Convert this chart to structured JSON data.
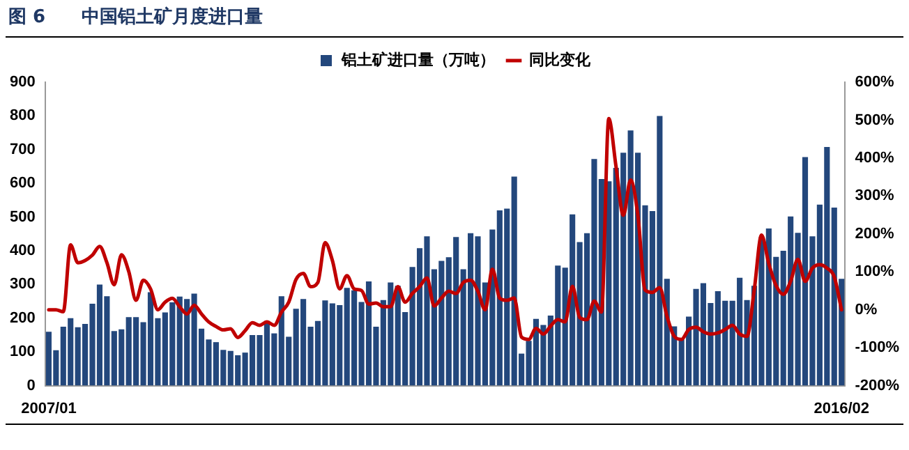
{
  "chart_data": {
    "type": "bar",
    "title": "图 6　　中国铝土矿月度进口量",
    "categories": [
      "2007/01",
      null,
      null,
      null,
      null,
      null,
      null,
      null,
      null,
      null,
      null,
      null,
      null,
      null,
      null,
      null,
      null,
      null,
      null,
      null,
      null,
      null,
      null,
      null,
      null,
      null,
      null,
      null,
      null,
      null,
      null,
      null,
      null,
      null,
      null,
      null,
      null,
      null,
      null,
      null,
      null,
      null,
      null,
      null,
      null,
      null,
      null,
      null,
      null,
      null,
      null,
      null,
      null,
      null,
      null,
      null,
      null,
      null,
      null,
      null,
      null,
      null,
      null,
      null,
      null,
      null,
      null,
      null,
      null,
      null,
      null,
      null,
      null,
      null,
      null,
      null,
      null,
      null,
      null,
      null,
      null,
      null,
      null,
      null,
      null,
      null,
      null,
      null,
      null,
      null,
      null,
      null,
      null,
      null,
      null,
      null,
      null,
      null,
      null,
      null,
      null,
      null,
      null,
      null,
      null,
      null,
      null,
      null,
      null,
      "2016/02"
    ],
    "series": [
      {
        "name": "铝土矿进口量（万吨）",
        "color": "#23477c",
        "values": [
          160,
          105,
          175,
          200,
          173,
          183,
          243,
          300,
          265,
          162,
          167,
          203,
          203,
          188,
          277,
          200,
          217,
          247,
          264,
          257,
          273,
          169,
          137,
          129,
          106,
          103,
          90,
          98,
          150,
          150,
          192,
          155,
          265,
          145,
          228,
          257,
          175,
          192,
          253,
          244,
          239,
          290,
          283,
          248,
          309,
          175,
          254,
          306,
          296,
          218,
          352,
          408,
          443,
          345,
          370,
          381,
          441,
          345,
          452,
          443,
          306,
          463,
          520,
          525,
          620,
          95,
          133,
          198,
          180,
          208,
          356,
          350,
          508,
          426,
          452,
          672,
          613,
          606,
          646,
          691,
          757,
          691,
          535,
          518,
          800,
          317,
          176,
          137,
          205,
          287,
          304,
          245,
          280,
          252,
          252,
          320,
          254,
          296,
          440,
          466,
          382,
          400,
          502,
          453,
          678,
          443,
          537,
          708,
          528,
          317
        ]
      },
      {
        "name": "同比变化",
        "type": "line",
        "axis": "y2",
        "color": "#c00000",
        "values": [
          0,
          0,
          -5,
          171,
          124,
          130,
          144,
          167,
          124,
          66,
          145,
          101,
          25,
          78,
          55,
          0,
          20,
          30,
          8,
          -11,
          12,
          -11,
          -32,
          -44,
          -53,
          -50,
          -73,
          -55,
          -34,
          -41,
          -32,
          -41,
          -6,
          20,
          80,
          96,
          61,
          72,
          177,
          130,
          55,
          90,
          55,
          51,
          15,
          18,
          8,
          8,
          61,
          20,
          43,
          61,
          84,
          10,
          31,
          49,
          43,
          72,
          78,
          49,
          0,
          107,
          31,
          25,
          31,
          -72,
          -78,
          -49,
          -64,
          -43,
          -26,
          -32,
          62,
          -20,
          -26,
          23,
          -6,
          504,
          377,
          249,
          342,
          249,
          52,
          46,
          58,
          -17,
          -70,
          -78,
          -52,
          -46,
          -58,
          -64,
          -61,
          -52,
          -41,
          -64,
          -70,
          52,
          197,
          122,
          64,
          41,
          75,
          133,
          75,
          110,
          119,
          110,
          87,
          0
        ]
      }
    ],
    "ylim": [
      0,
      900
    ],
    "yticks": [
      0,
      100,
      200,
      300,
      400,
      500,
      600,
      700,
      800,
      900
    ],
    "y2lim": [
      -200,
      600
    ],
    "y2ticks": [
      {
        "value": -200,
        "label": "-200%"
      },
      {
        "value": -100,
        "label": "-100%"
      },
      {
        "value": 0,
        "label": "0%"
      },
      {
        "value": 100,
        "label": "100%"
      },
      {
        "value": 200,
        "label": "200%"
      },
      {
        "value": 300,
        "label": "300%"
      },
      {
        "value": 400,
        "label": "400%"
      },
      {
        "value": 500,
        "label": "500%"
      },
      {
        "value": 600,
        "label": "600%"
      }
    ],
    "legend": "top",
    "grid": false,
    "marker": "none",
    "line_style": "solid"
  }
}
